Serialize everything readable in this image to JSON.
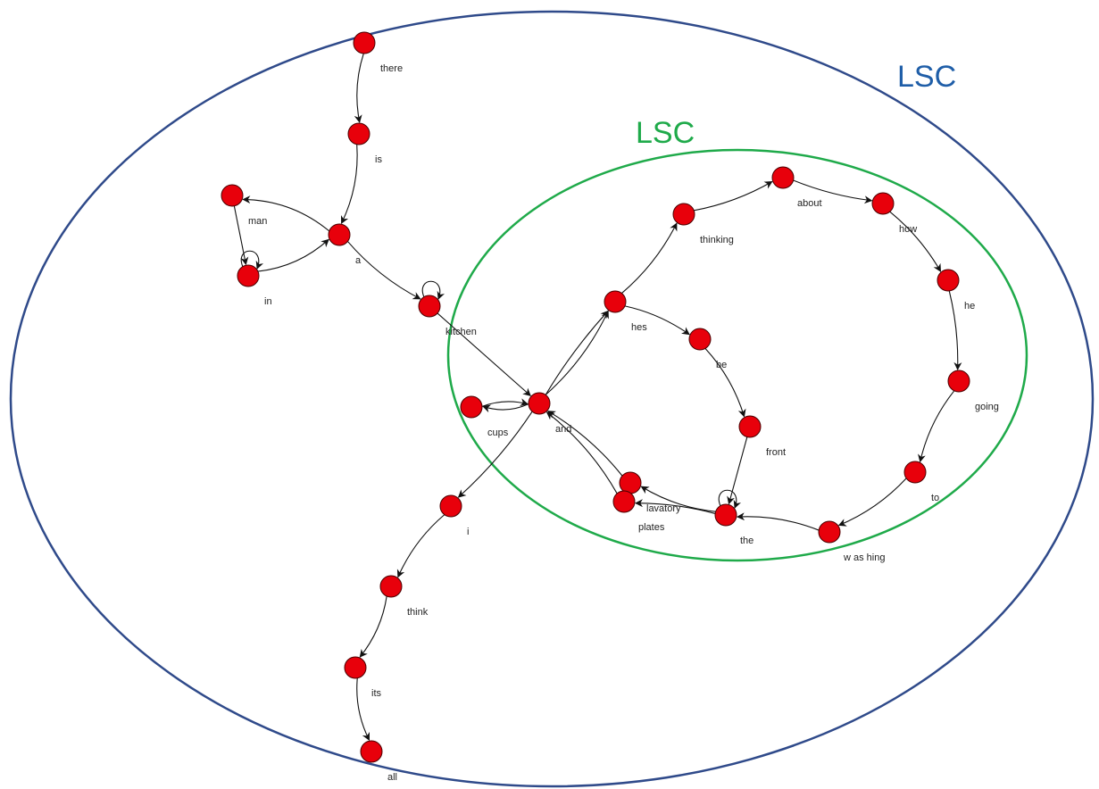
{
  "colors": {
    "outer_region": "#2f4a8a",
    "outer_label": "#1f5ea8",
    "inner_region": "#1faa4a",
    "node_fill": "#e8000b",
    "edge": "#111111"
  },
  "regions": {
    "outer": {
      "label": "LSC"
    },
    "inner": {
      "label": "LSC"
    }
  },
  "nodes": [
    {
      "id": "there",
      "label": "there"
    },
    {
      "id": "is",
      "label": "is"
    },
    {
      "id": "a",
      "label": "a"
    },
    {
      "id": "man",
      "label": "man"
    },
    {
      "id": "in",
      "label": "in"
    },
    {
      "id": "kitchen",
      "label": "kitchen"
    },
    {
      "id": "and",
      "label": "and"
    },
    {
      "id": "cups",
      "label": "cups"
    },
    {
      "id": "hes",
      "label": "hes"
    },
    {
      "id": "thinking",
      "label": "thinking"
    },
    {
      "id": "about",
      "label": "about"
    },
    {
      "id": "how",
      "label": "how"
    },
    {
      "id": "he",
      "label": "he"
    },
    {
      "id": "going",
      "label": "going"
    },
    {
      "id": "to",
      "label": "to"
    },
    {
      "id": "washing",
      "label": "w as hing"
    },
    {
      "id": "the",
      "label": "the"
    },
    {
      "id": "be",
      "label": "be"
    },
    {
      "id": "front",
      "label": "front"
    },
    {
      "id": "lavatory",
      "label": "lavatory"
    },
    {
      "id": "plates",
      "label": "plates"
    },
    {
      "id": "i",
      "label": "i"
    },
    {
      "id": "think",
      "label": "think"
    },
    {
      "id": "its",
      "label": "its"
    },
    {
      "id": "all",
      "label": "all"
    }
  ],
  "edges": [
    {
      "from": "there",
      "to": "is"
    },
    {
      "from": "is",
      "to": "a"
    },
    {
      "from": "a",
      "to": "man"
    },
    {
      "from": "man",
      "to": "in"
    },
    {
      "from": "in",
      "to": "in"
    },
    {
      "from": "in",
      "to": "a"
    },
    {
      "from": "a",
      "to": "kitchen"
    },
    {
      "from": "kitchen",
      "to": "kitchen"
    },
    {
      "from": "kitchen",
      "to": "and"
    },
    {
      "from": "and",
      "to": "cups"
    },
    {
      "from": "cups",
      "to": "and"
    },
    {
      "from": "and",
      "to": "hes"
    },
    {
      "from": "and",
      "to": "hes"
    },
    {
      "from": "hes",
      "to": "thinking"
    },
    {
      "from": "thinking",
      "to": "about"
    },
    {
      "from": "about",
      "to": "how"
    },
    {
      "from": "how",
      "to": "he"
    },
    {
      "from": "he",
      "to": "going"
    },
    {
      "from": "going",
      "to": "to"
    },
    {
      "from": "to",
      "to": "washing"
    },
    {
      "from": "washing",
      "to": "the"
    },
    {
      "from": "hes",
      "to": "be"
    },
    {
      "from": "be",
      "to": "front"
    },
    {
      "from": "front",
      "to": "the"
    },
    {
      "from": "the",
      "to": "the"
    },
    {
      "from": "the",
      "to": "lavatory"
    },
    {
      "from": "lavatory",
      "to": "and"
    },
    {
      "from": "plates",
      "to": "and"
    },
    {
      "from": "the",
      "to": "plates"
    },
    {
      "from": "and",
      "to": "i"
    },
    {
      "from": "i",
      "to": "think"
    },
    {
      "from": "think",
      "to": "its"
    },
    {
      "from": "its",
      "to": "all"
    }
  ]
}
